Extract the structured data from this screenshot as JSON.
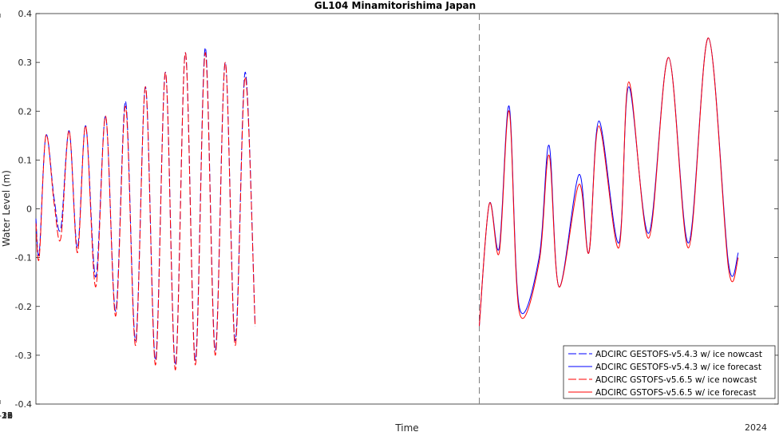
{
  "chart_data": {
    "type": "line",
    "title": "GL104 Minamitorishima Japan",
    "xlabel": "Time",
    "ylabel": "Water Level (m)",
    "year_label": "2024",
    "xlim": [
      "2024-07-13 21:00",
      "2024-08-01 12:00"
    ],
    "ylim": [
      -0.4,
      0.4
    ],
    "yticks": [
      -0.4,
      -0.3,
      -0.2,
      -0.1,
      0,
      0.1,
      0.2,
      0.3,
      0.4
    ],
    "ytick_labels": [
      "-0.4",
      "-0.3",
      "-0.2",
      "-0.1",
      "0",
      "0.1",
      "0.2",
      "0.3",
      "0.4"
    ],
    "xticks": [
      "2024-07-16",
      "2024-07-19",
      "2024-07-22",
      "2024-07-25",
      "2024-07-28",
      "2024-07-31"
    ],
    "xtick_labels": [
      "07-16",
      "07-19",
      "07-22",
      "07-25",
      "07-28",
      "07-31"
    ],
    "forecast_start": "2024-07-25 00:00",
    "grid": false,
    "legend_position": "bottom-right",
    "series": [
      {
        "name": "ADCIRC GESTOFS-v5.4.3 w/ ice nowcast",
        "color": "#0000ff",
        "style": "dashed",
        "points": [
          [
            "07-13 21:00",
            -0.02
          ],
          [
            "07-13 23:00",
            -0.09
          ],
          [
            "07-14 03:00",
            0.15
          ],
          [
            "07-14 08:00",
            0.02
          ],
          [
            "07-14 12:00",
            -0.04
          ],
          [
            "07-14 17:00",
            0.16
          ],
          [
            "07-14 22:00",
            -0.08
          ],
          [
            "07-15 03:00",
            0.17
          ],
          [
            "07-15 09:00",
            -0.14
          ],
          [
            "07-15 15:00",
            0.19
          ],
          [
            "07-15 21:00",
            -0.21
          ],
          [
            "07-16 03:00",
            0.22
          ],
          [
            "07-16 09:00",
            -0.27
          ],
          [
            "07-16 15:00",
            0.25
          ],
          [
            "07-16 21:00",
            -0.31
          ],
          [
            "07-17 03:00",
            0.28
          ],
          [
            "07-17 09:00",
            -0.32
          ],
          [
            "07-17 15:00",
            0.32
          ],
          [
            "07-17 21:00",
            -0.31
          ],
          [
            "07-18 03:00",
            0.33
          ],
          [
            "07-18 09:00",
            -0.29
          ],
          [
            "07-18 15:00",
            0.3
          ],
          [
            "07-18 21:00",
            -0.27
          ],
          [
            "07-19 03:00",
            0.28
          ],
          [
            "07-19 09:00",
            -0.24
          ]
        ]
      },
      {
        "name": "ADCIRC GESTOFS-v5.4.3 w/ ice forecast",
        "color": "#0000ff",
        "style": "solid",
        "points": [
          [
            "07-25 00:00",
            -0.24
          ],
          [
            "07-25 06:00",
            0.01
          ],
          [
            "07-25 12:00",
            -0.08
          ],
          [
            "07-25 18:00",
            0.21
          ],
          [
            "07-26 00:00",
            -0.2
          ],
          [
            "07-26 12:00",
            -0.1
          ],
          [
            "07-26 18:00",
            0.13
          ],
          [
            "07-27 00:00",
            -0.16
          ],
          [
            "07-27 12:00",
            0.07
          ],
          [
            "07-27 18:00",
            -0.09
          ],
          [
            "07-28 00:00",
            0.18
          ],
          [
            "07-28 12:00",
            -0.07
          ],
          [
            "07-28 18:00",
            0.25
          ],
          [
            "07-29 06:00",
            -0.05
          ],
          [
            "07-29 18:00",
            0.31
          ],
          [
            "07-30 06:00",
            -0.07
          ],
          [
            "07-30 18:00",
            0.35
          ],
          [
            "07-31 06:00",
            -0.11
          ],
          [
            "07-31 12:00",
            -0.09
          ]
        ]
      },
      {
        "name": "ADCIRC GSTOFS-v5.6.5 w/ ice nowcast",
        "color": "#ff0000",
        "style": "dashed",
        "points": [
          [
            "07-13 21:00",
            -0.03
          ],
          [
            "07-13 23:00",
            -0.1
          ],
          [
            "07-14 03:00",
            0.15
          ],
          [
            "07-14 08:00",
            0.01
          ],
          [
            "07-14 12:00",
            -0.06
          ],
          [
            "07-14 17:00",
            0.16
          ],
          [
            "07-14 22:00",
            -0.09
          ],
          [
            "07-15 03:00",
            0.17
          ],
          [
            "07-15 09:00",
            -0.16
          ],
          [
            "07-15 15:00",
            0.19
          ],
          [
            "07-15 21:00",
            -0.22
          ],
          [
            "07-16 03:00",
            0.21
          ],
          [
            "07-16 09:00",
            -0.28
          ],
          [
            "07-16 15:00",
            0.25
          ],
          [
            "07-16 21:00",
            -0.32
          ],
          [
            "07-17 03:00",
            0.28
          ],
          [
            "07-17 09:00",
            -0.33
          ],
          [
            "07-17 15:00",
            0.32
          ],
          [
            "07-17 21:00",
            -0.32
          ],
          [
            "07-18 03:00",
            0.32
          ],
          [
            "07-18 09:00",
            -0.3
          ],
          [
            "07-18 15:00",
            0.3
          ],
          [
            "07-18 21:00",
            -0.28
          ],
          [
            "07-19 03:00",
            0.27
          ],
          [
            "07-19 09:00",
            -0.24
          ]
        ]
      },
      {
        "name": "ADCIRC GSTOFS-v5.6.5 w/ ice forecast",
        "color": "#ff0000",
        "style": "solid",
        "points": [
          [
            "07-25 00:00",
            -0.24
          ],
          [
            "07-25 06:00",
            0.01
          ],
          [
            "07-25 12:00",
            -0.09
          ],
          [
            "07-25 18:00",
            0.2
          ],
          [
            "07-26 00:00",
            -0.21
          ],
          [
            "07-26 12:00",
            -0.11
          ],
          [
            "07-26 18:00",
            0.11
          ],
          [
            "07-27 00:00",
            -0.16
          ],
          [
            "07-27 12:00",
            0.05
          ],
          [
            "07-27 18:00",
            -0.09
          ],
          [
            "07-28 00:00",
            0.17
          ],
          [
            "07-28 12:00",
            -0.08
          ],
          [
            "07-28 18:00",
            0.26
          ],
          [
            "07-29 06:00",
            -0.06
          ],
          [
            "07-29 18:00",
            0.31
          ],
          [
            "07-30 06:00",
            -0.08
          ],
          [
            "07-30 18:00",
            0.35
          ],
          [
            "07-31 06:00",
            -0.12
          ],
          [
            "07-31 12:00",
            -0.1
          ]
        ]
      }
    ]
  }
}
